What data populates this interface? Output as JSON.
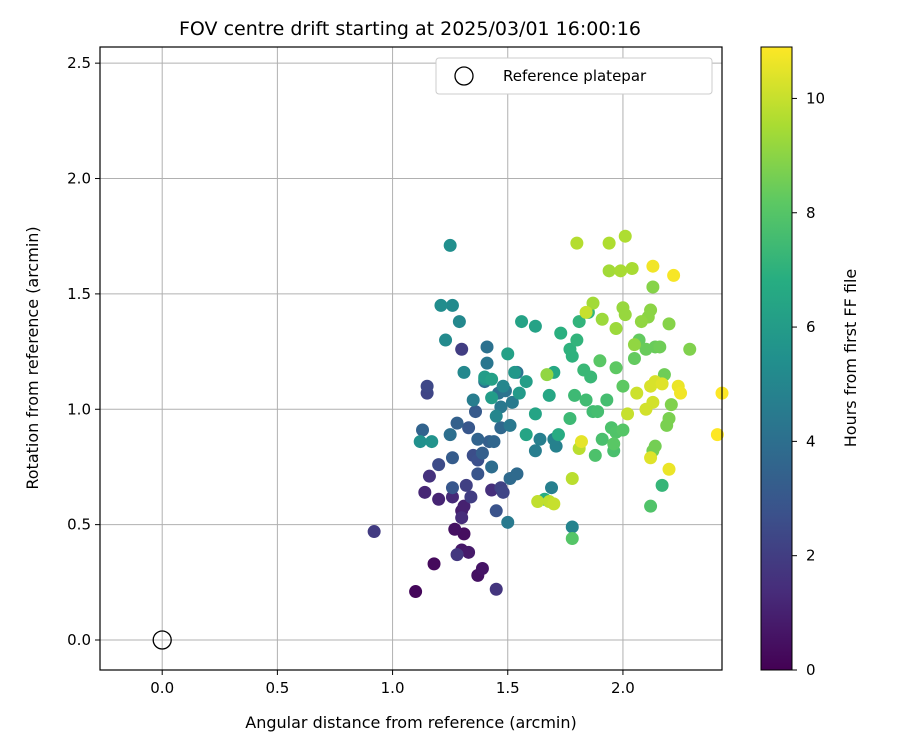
{
  "chart_data": {
    "type": "scatter",
    "title": "FOV centre drift starting at 2025/03/01 16:00:16",
    "xlabel": "Angular distance from reference (arcmin)",
    "ylabel": "Rotation from reference (arcmin)",
    "xlim": [
      -0.27,
      2.43
    ],
    "ylim": [
      -0.13,
      2.57
    ],
    "x_ticks": [
      "0.0",
      "0.5",
      "1.0",
      "1.5",
      "2.0"
    ],
    "x_tick_values": [
      0,
      0.5,
      1.0,
      1.5,
      2.0
    ],
    "y_ticks": [
      "0.0",
      "0.5",
      "1.0",
      "1.5",
      "2.0",
      "2.5"
    ],
    "y_tick_values": [
      0,
      0.5,
      1.0,
      1.5,
      2.0,
      2.5
    ],
    "grid": true,
    "legend_position": "top-right",
    "reference_point": {
      "label": "Reference platepar",
      "x": 0.0,
      "y": 0.0,
      "marker": "open-circle"
    },
    "colorbar": {
      "label": "Hours from first FF file",
      "min": 0,
      "max": 10.9,
      "ticks": [
        "0",
        "2",
        "4",
        "6",
        "8",
        "10"
      ],
      "tick_values": [
        0,
        2,
        4,
        6,
        8,
        10
      ],
      "colormap": "viridis"
    },
    "series": [
      {
        "points": [
          [
            1.1,
            0.21,
            0.2
          ],
          [
            1.18,
            0.33,
            0.3
          ],
          [
            1.31,
            0.46,
            0.4
          ],
          [
            1.27,
            0.48,
            0.5
          ],
          [
            1.37,
            0.28,
            0.5
          ],
          [
            1.39,
            0.31,
            0.6
          ],
          [
            1.3,
            0.39,
            0.7
          ],
          [
            1.33,
            0.38,
            0.8
          ],
          [
            1.3,
            0.56,
            0.9
          ],
          [
            1.31,
            0.58,
            1.0
          ],
          [
            1.2,
            0.61,
            1.1
          ],
          [
            1.14,
            0.64,
            1.2
          ],
          [
            1.26,
            0.62,
            1.3
          ],
          [
            1.3,
            0.53,
            1.4
          ],
          [
            1.43,
            0.65,
            1.5
          ],
          [
            1.16,
            0.71,
            1.6
          ],
          [
            1.45,
            0.22,
            1.7
          ],
          [
            1.28,
            0.37,
            1.8
          ],
          [
            0.92,
            0.47,
            1.9
          ],
          [
            1.3,
            1.26,
            2.0
          ],
          [
            1.34,
            0.62,
            2.0
          ],
          [
            1.32,
            0.67,
            2.1
          ],
          [
            1.47,
            0.66,
            2.2
          ],
          [
            1.48,
            0.64,
            2.3
          ],
          [
            1.15,
            1.07,
            2.3
          ],
          [
            1.15,
            1.1,
            2.4
          ],
          [
            1.2,
            0.76,
            2.5
          ],
          [
            1.35,
            0.8,
            2.6
          ],
          [
            1.37,
            0.78,
            2.7
          ],
          [
            1.45,
            0.56,
            2.8
          ],
          [
            1.37,
            0.72,
            2.9
          ],
          [
            1.26,
            0.66,
            3.0
          ],
          [
            1.33,
            0.92,
            3.0
          ],
          [
            1.36,
            0.99,
            3.1
          ],
          [
            1.26,
            0.79,
            3.2
          ],
          [
            1.39,
            0.81,
            3.3
          ],
          [
            1.42,
            0.86,
            3.3
          ],
          [
            1.28,
            0.94,
            3.4
          ],
          [
            1.13,
            0.91,
            3.5
          ],
          [
            1.37,
            0.87,
            3.5
          ],
          [
            1.44,
            0.86,
            3.6
          ],
          [
            1.47,
            0.92,
            3.7
          ],
          [
            1.54,
            0.72,
            3.8
          ],
          [
            1.51,
            0.7,
            3.8
          ],
          [
            1.43,
            0.75,
            3.9
          ],
          [
            1.25,
            0.89,
            4.0
          ],
          [
            1.4,
            1.12,
            4.0
          ],
          [
            1.41,
            1.27,
            4.1
          ],
          [
            1.46,
            1.07,
            4.1
          ],
          [
            1.49,
            1.08,
            4.2
          ],
          [
            1.54,
            1.16,
            4.2
          ],
          [
            1.41,
            1.2,
            4.3
          ],
          [
            1.47,
            1.01,
            4.4
          ],
          [
            1.51,
            0.93,
            4.4
          ],
          [
            1.5,
            0.51,
            4.5
          ],
          [
            1.52,
            1.03,
            4.5
          ],
          [
            1.35,
            1.04,
            4.6
          ],
          [
            1.62,
            0.82,
            4.6
          ],
          [
            1.69,
            0.66,
            4.7
          ],
          [
            1.64,
            0.87,
            4.7
          ],
          [
            1.71,
            0.84,
            4.8
          ],
          [
            1.7,
            0.87,
            4.8
          ],
          [
            1.78,
            0.49,
            4.9
          ],
          [
            1.45,
            0.97,
            5.0
          ],
          [
            1.48,
            1.1,
            5.0
          ],
          [
            1.31,
            1.16,
            5.1
          ],
          [
            1.29,
            1.38,
            5.1
          ],
          [
            1.23,
            1.3,
            5.2
          ],
          [
            1.26,
            1.45,
            5.2
          ],
          [
            1.21,
            1.45,
            5.3
          ],
          [
            1.25,
            1.71,
            5.4
          ],
          [
            1.12,
            0.86,
            5.5
          ],
          [
            1.17,
            0.86,
            5.6
          ],
          [
            1.4,
            1.13,
            5.7
          ],
          [
            1.53,
            1.16,
            5.8
          ],
          [
            1.55,
            1.07,
            5.9
          ],
          [
            1.43,
            1.05,
            6.0
          ],
          [
            1.4,
            1.14,
            6.0
          ],
          [
            1.58,
            1.12,
            6.1
          ],
          [
            1.43,
            1.13,
            6.2
          ],
          [
            1.5,
            1.24,
            6.2
          ],
          [
            1.56,
            1.38,
            6.3
          ],
          [
            1.62,
            1.36,
            6.3
          ],
          [
            1.58,
            0.89,
            6.4
          ],
          [
            1.62,
            0.98,
            6.4
          ],
          [
            1.68,
            1.06,
            6.5
          ],
          [
            1.7,
            1.16,
            6.6
          ],
          [
            1.72,
            0.89,
            6.7
          ],
          [
            1.66,
            0.61,
            6.8
          ],
          [
            1.73,
            1.33,
            6.9
          ],
          [
            1.77,
            1.26,
            7.0
          ],
          [
            1.78,
            1.23,
            7.0
          ],
          [
            1.8,
            1.3,
            7.1
          ],
          [
            1.81,
            1.38,
            7.1
          ],
          [
            1.85,
            1.42,
            7.2
          ],
          [
            1.83,
            1.17,
            7.3
          ],
          [
            1.86,
            1.14,
            7.3
          ],
          [
            1.79,
            1.06,
            7.4
          ],
          [
            1.77,
            0.96,
            7.4
          ],
          [
            1.84,
            1.04,
            7.5
          ],
          [
            1.87,
            0.99,
            7.5
          ],
          [
            1.89,
            0.99,
            7.6
          ],
          [
            1.93,
            1.04,
            7.6
          ],
          [
            1.96,
            0.82,
            7.7
          ],
          [
            1.91,
            0.87,
            7.7
          ],
          [
            1.88,
            0.8,
            7.8
          ],
          [
            1.95,
            0.92,
            7.8
          ],
          [
            1.97,
            0.9,
            7.9
          ],
          [
            2.0,
            0.91,
            8.0
          ],
          [
            1.78,
            0.44,
            8.0
          ],
          [
            1.96,
            0.85,
            8.1
          ],
          [
            1.9,
            1.21,
            8.1
          ],
          [
            1.97,
            1.18,
            8.2
          ],
          [
            2.0,
            1.1,
            8.2
          ],
          [
            2.05,
            1.22,
            8.3
          ],
          [
            2.07,
            1.3,
            8.3
          ],
          [
            2.1,
            1.26,
            8.4
          ],
          [
            2.14,
            1.27,
            8.4
          ],
          [
            2.16,
            1.27,
            8.5
          ],
          [
            2.18,
            1.15,
            8.5
          ],
          [
            2.13,
            0.82,
            8.6
          ],
          [
            2.14,
            0.84,
            8.6
          ],
          [
            2.19,
            0.93,
            8.7
          ],
          [
            2.2,
            0.96,
            8.7
          ],
          [
            2.21,
            1.02,
            8.8
          ],
          [
            2.29,
            1.26,
            8.8
          ],
          [
            2.2,
            1.37,
            8.9
          ],
          [
            2.13,
            1.53,
            8.9
          ],
          [
            2.12,
            1.43,
            9.0
          ],
          [
            2.11,
            1.4,
            9.0
          ],
          [
            2.08,
            1.38,
            9.1
          ],
          [
            2.05,
            1.28,
            9.1
          ],
          [
            2.01,
            1.41,
            9.2
          ],
          [
            2.0,
            1.44,
            9.2
          ],
          [
            1.97,
            1.35,
            9.3
          ],
          [
            1.91,
            1.39,
            9.3
          ],
          [
            1.87,
            1.46,
            9.4
          ],
          [
            1.94,
            1.6,
            9.4
          ],
          [
            1.99,
            1.6,
            9.5
          ],
          [
            2.04,
            1.61,
            9.5
          ],
          [
            2.01,
            1.75,
            9.6
          ],
          [
            1.94,
            1.72,
            9.6
          ],
          [
            1.8,
            1.72,
            9.7
          ],
          [
            1.81,
            0.83,
            9.8
          ],
          [
            1.78,
            0.7,
            9.8
          ],
          [
            1.68,
            0.6,
            9.9
          ],
          [
            1.63,
            0.6,
            9.9
          ],
          [
            1.7,
            0.59,
            10.0
          ],
          [
            2.02,
            0.98,
            10.0
          ],
          [
            2.06,
            1.07,
            10.1
          ],
          [
            2.1,
            1.0,
            10.2
          ],
          [
            2.13,
            1.03,
            10.2
          ],
          [
            2.12,
            1.1,
            10.3
          ],
          [
            2.14,
            1.12,
            10.3
          ],
          [
            2.17,
            1.11,
            10.4
          ],
          [
            2.12,
            0.79,
            10.4
          ],
          [
            1.82,
            0.86,
            10.5
          ],
          [
            2.2,
            0.74,
            10.6
          ],
          [
            2.24,
            1.1,
            10.6
          ],
          [
            2.25,
            1.07,
            10.7
          ],
          [
            2.13,
            1.62,
            10.7
          ],
          [
            2.22,
            1.58,
            10.8
          ],
          [
            2.43,
            1.07,
            10.9
          ],
          [
            2.41,
            0.89,
            10.9
          ],
          [
            2.17,
            0.67,
            7.2
          ],
          [
            2.12,
            0.58,
            7.9
          ],
          [
            1.67,
            1.15,
            9.1
          ],
          [
            1.84,
            1.42,
            10.0
          ]
        ]
      }
    ]
  }
}
